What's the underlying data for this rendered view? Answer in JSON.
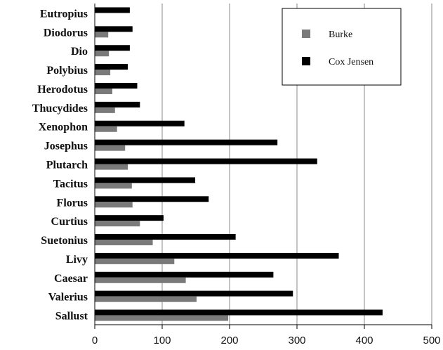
{
  "chart_data": {
    "type": "bar",
    "orientation": "horizontal",
    "categories": [
      "Eutropius",
      "Diodorus",
      "Dio",
      "Polybius",
      "Herodotus",
      "Thucydides",
      "Xenophon",
      "Josephus",
      "Plutarch",
      "Tacitus",
      "Florus",
      "Curtius",
      "Suetonius",
      "Livy",
      "Caesar",
      "Valerius",
      "Sallust"
    ],
    "series": [
      {
        "name": "Burke",
        "color": "#7a7a7a",
        "values": [
          0,
          20,
          21,
          23,
          26,
          30,
          33,
          45,
          49,
          55,
          56,
          67,
          86,
          118,
          135,
          151,
          198
        ]
      },
      {
        "name": "Cox Jensen",
        "color": "#000000",
        "values": [
          52,
          56,
          52,
          49,
          63,
          67,
          133,
          271,
          330,
          149,
          169,
          102,
          209,
          362,
          265,
          294,
          427
        ]
      }
    ],
    "xlim": [
      0,
      500
    ],
    "xticks": [
      0,
      100,
      200,
      300,
      400,
      500
    ],
    "grid": "vertical",
    "legend_position": "top-right",
    "title": "",
    "xlabel": "",
    "ylabel": ""
  }
}
